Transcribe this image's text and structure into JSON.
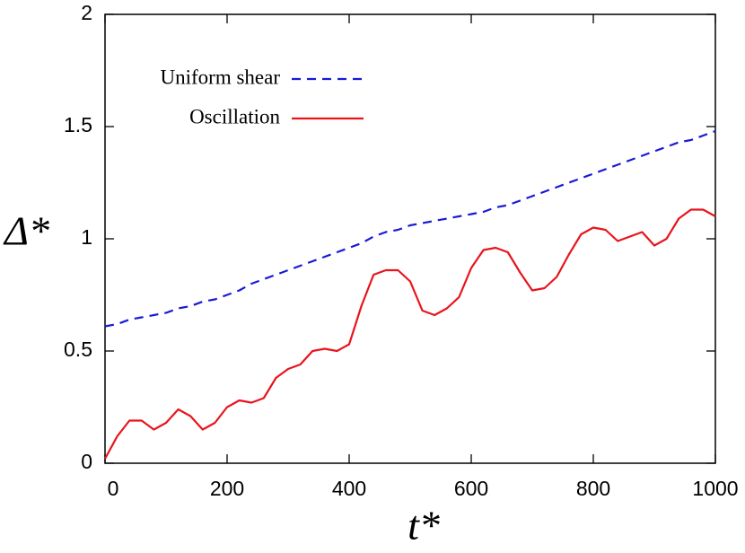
{
  "chart_data": {
    "type": "line",
    "x_label": "t*",
    "y_label": "Δ*",
    "x": [
      0,
      20,
      40,
      60,
      80,
      100,
      120,
      140,
      160,
      180,
      200,
      220,
      240,
      260,
      280,
      300,
      320,
      340,
      360,
      380,
      400,
      420,
      440,
      460,
      480,
      500,
      520,
      540,
      560,
      580,
      600,
      620,
      640,
      660,
      680,
      700,
      720,
      740,
      760,
      780,
      800,
      820,
      840,
      860,
      880,
      900,
      920,
      940,
      960,
      980,
      1000
    ],
    "series": [
      {
        "name": "Uniform shear",
        "color": "#1a1ad6",
        "dash": true,
        "values": [
          0.61,
          0.62,
          0.64,
          0.65,
          0.66,
          0.67,
          0.69,
          0.7,
          0.72,
          0.73,
          0.75,
          0.77,
          0.8,
          0.82,
          0.84,
          0.86,
          0.88,
          0.9,
          0.92,
          0.94,
          0.96,
          0.98,
          1.01,
          1.03,
          1.04,
          1.06,
          1.07,
          1.08,
          1.09,
          1.1,
          1.11,
          1.12,
          1.14,
          1.15,
          1.17,
          1.19,
          1.21,
          1.23,
          1.25,
          1.27,
          1.29,
          1.31,
          1.33,
          1.35,
          1.37,
          1.39,
          1.41,
          1.43,
          1.44,
          1.46,
          1.48
        ]
      },
      {
        "name": "Oscillation",
        "color": "#e8141c",
        "dash": false,
        "values": [
          0.02,
          0.12,
          0.19,
          0.19,
          0.15,
          0.18,
          0.24,
          0.21,
          0.15,
          0.18,
          0.25,
          0.28,
          0.27,
          0.29,
          0.38,
          0.42,
          0.44,
          0.5,
          0.51,
          0.5,
          0.53,
          0.7,
          0.84,
          0.86,
          0.86,
          0.81,
          0.68,
          0.66,
          0.69,
          0.74,
          0.87,
          0.95,
          0.96,
          0.94,
          0.85,
          0.77,
          0.78,
          0.83,
          0.93,
          1.02,
          1.05,
          1.04,
          0.99,
          1.01,
          1.03,
          0.97,
          1.0,
          1.09,
          1.13,
          1.13,
          1.1
        ]
      }
    ],
    "xlim": [
      0,
      1000
    ],
    "xticks": [
      0,
      200,
      400,
      600,
      800,
      1000
    ],
    "ylim": [
      0,
      2
    ],
    "yticks": [
      0,
      0.5,
      1,
      1.5,
      2
    ],
    "legend": "upper-left"
  }
}
